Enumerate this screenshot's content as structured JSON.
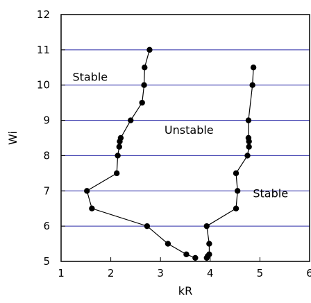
{
  "chart_data": {
    "type": "scatter",
    "title": "",
    "xlabel": "kR",
    "ylabel": "Wi",
    "xlim": [
      1,
      6
    ],
    "ylim": [
      5,
      12
    ],
    "xticks": [
      1,
      2,
      3,
      4,
      5,
      6
    ],
    "yticks": [
      5,
      6,
      7,
      8,
      9,
      10,
      11,
      12
    ],
    "grid": "horizontal",
    "grid_color": "#2b2ba8",
    "marker_color": "#000000",
    "line_color": "#000000",
    "series": [
      {
        "points": [
          [
            2.78,
            11.0
          ],
          [
            2.68,
            10.5
          ],
          [
            2.67,
            10.0
          ],
          [
            2.63,
            9.5
          ],
          [
            2.4,
            9.0
          ],
          [
            2.2,
            8.5
          ],
          [
            2.18,
            8.4
          ],
          [
            2.17,
            8.25
          ],
          [
            2.14,
            8.0
          ],
          [
            2.12,
            7.5
          ],
          [
            1.52,
            7.0
          ],
          [
            1.62,
            6.5
          ],
          [
            2.73,
            6.0
          ],
          [
            3.15,
            5.5
          ],
          [
            3.52,
            5.2
          ],
          [
            3.7,
            5.1
          ]
        ]
      },
      {
        "points": [
          [
            4.87,
            10.5
          ],
          [
            4.85,
            10.0
          ],
          [
            4.77,
            9.0
          ],
          [
            4.77,
            8.5
          ],
          [
            4.78,
            8.4
          ],
          [
            4.78,
            8.25
          ],
          [
            4.75,
            8.0
          ],
          [
            4.52,
            7.5
          ],
          [
            4.55,
            7.0
          ],
          [
            4.52,
            6.5
          ],
          [
            3.93,
            6.0
          ],
          [
            3.98,
            5.5
          ],
          [
            3.98,
            5.2
          ],
          [
            3.95,
            5.15
          ],
          [
            3.93,
            5.1
          ]
        ]
      }
    ],
    "annotations": [
      {
        "text": "Stable",
        "x": 1.23,
        "y": 10.12
      },
      {
        "text": "Unstable",
        "x": 3.08,
        "y": 8.62
      },
      {
        "text": "Stable",
        "x": 4.86,
        "y": 6.82
      }
    ]
  }
}
